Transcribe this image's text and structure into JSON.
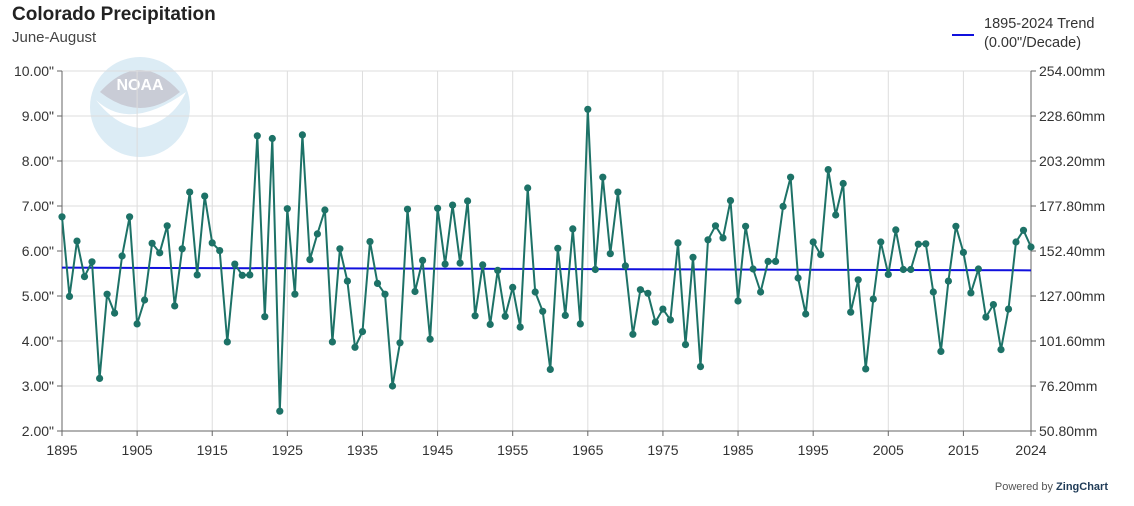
{
  "title": "Colorado Precipitation",
  "subtitle": "June-August",
  "legend": {
    "line1": "1895-2024 Trend",
    "line2": "(0.00\"/Decade)"
  },
  "watermark": {
    "text": "NOAA"
  },
  "credit": {
    "prefix": "Powered by",
    "brand": "ZingChart"
  },
  "colors": {
    "series": "#1d7267",
    "trend": "#1010dd",
    "grid": "#dddddd",
    "watermark": "#dcecf5"
  },
  "chart_data": {
    "type": "line",
    "x_start": 1895,
    "x_end": 2024,
    "ylim": [
      2,
      10
    ],
    "y_left_ticks": [
      "2.00\"",
      "3.00\"",
      "4.00\"",
      "5.00\"",
      "6.00\"",
      "7.00\"",
      "8.00\"",
      "9.00\"",
      "10.00\""
    ],
    "y_right_ticks": [
      "50.80mm",
      "76.20mm",
      "101.60mm",
      "127.00mm",
      "152.40mm",
      "177.80mm",
      "203.20mm",
      "228.60mm",
      "254.00mm"
    ],
    "x_ticks": [
      "1895",
      "1905",
      "1915",
      "1925",
      "1935",
      "1945",
      "1955",
      "1965",
      "1975",
      "1985",
      "1995",
      "2005",
      "2015",
      "2024"
    ],
    "grid": true,
    "trend": {
      "name": "1895-2024 Trend",
      "start": 5.63,
      "end": 5.57
    },
    "values": [
      6.76,
      4.99,
      6.22,
      5.43,
      5.76,
      3.17,
      5.04,
      4.62,
      5.89,
      6.76,
      4.38,
      4.91,
      6.17,
      5.96,
      6.56,
      4.78,
      6.05,
      7.31,
      5.47,
      7.22,
      6.18,
      6.01,
      3.98,
      5.71,
      5.46,
      5.47,
      8.56,
      4.54,
      8.5,
      2.44,
      6.94,
      5.04,
      8.58,
      5.81,
      6.38,
      6.91,
      3.98,
      6.05,
      5.33,
      3.86,
      4.21,
      6.21,
      5.28,
      5.04,
      3.0,
      3.96,
      6.93,
      5.1,
      5.79,
      4.04,
      6.95,
      5.71,
      7.02,
      5.73,
      7.11,
      4.56,
      5.69,
      4.37,
      5.57,
      4.55,
      5.19,
      4.31,
      7.4,
      5.09,
      4.66,
      3.37,
      6.06,
      4.57,
      6.49,
      4.38,
      9.15,
      5.59,
      7.64,
      5.94,
      7.31,
      5.67,
      4.15,
      5.14,
      5.06,
      4.42,
      4.71,
      4.47,
      6.18,
      3.92,
      5.86,
      3.43,
      6.25,
      6.56,
      6.29,
      7.12,
      4.89,
      6.55,
      5.6,
      5.09,
      5.77,
      5.77,
      6.99,
      7.64,
      5.4,
      4.6,
      6.2,
      5.92,
      7.81,
      6.8,
      7.5,
      4.64,
      5.36,
      3.38,
      4.93,
      6.2,
      5.48,
      6.47,
      5.59,
      5.59,
      6.15,
      6.16,
      5.09,
      3.77,
      5.33,
      6.55,
      5.97,
      5.07,
      5.6,
      4.53,
      4.81,
      3.81,
      4.71,
      6.2,
      6.46,
      6.09
    ]
  }
}
